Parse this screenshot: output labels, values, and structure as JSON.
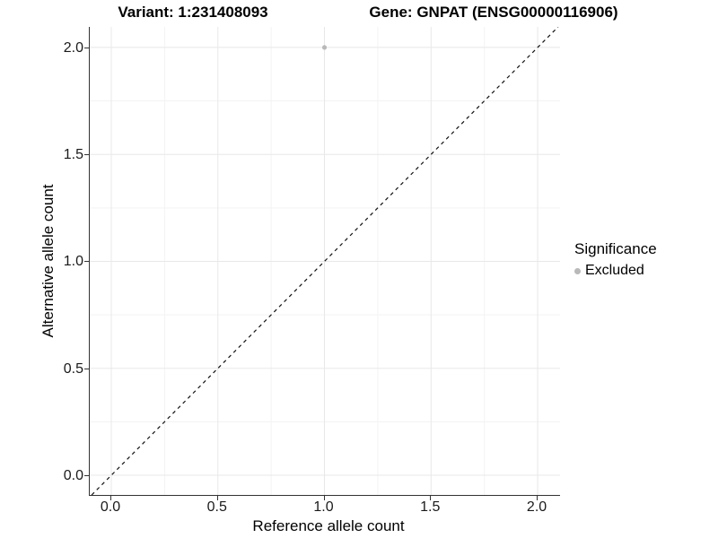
{
  "header": {
    "variant_title": "Variant: 1:231408093",
    "gene_title": "Gene: GNPAT (ENSG00000116906)"
  },
  "axes": {
    "x_label": "Reference allele count",
    "y_label": "Alternative allele count"
  },
  "legend": {
    "title": "Significance",
    "items": [
      {
        "label": "Excluded",
        "color": "#b9b9b9"
      }
    ]
  },
  "colors": {
    "background": "#ffffff",
    "grid_major": "#e8e8e8",
    "grid_minor": "#f3f3f3",
    "axis_line": "#333333",
    "dashed_line": "#111111",
    "point": "#b9b9b9",
    "text": "#000000"
  },
  "chart_data": {
    "type": "scatter",
    "title": "Variant: 1:231408093 | Gene: GNPAT (ENSG00000116906)",
    "xlabel": "Reference allele count",
    "ylabel": "Alternative allele count",
    "xlim": [
      -0.101,
      2.105
    ],
    "ylim": [
      -0.092,
      2.096
    ],
    "x_ticks": [
      0.0,
      0.5,
      1.0,
      1.5,
      2.0
    ],
    "y_ticks": [
      0.0,
      0.5,
      1.0,
      1.5,
      2.0
    ],
    "grid": true,
    "grid_minor": true,
    "legend_position": "right",
    "legend_title": "Significance",
    "series": [
      {
        "name": "Excluded",
        "color": "#b9b9b9",
        "points": [
          {
            "x": 1.0,
            "y": 2.0
          }
        ]
      }
    ],
    "reference_line": {
      "style": "dashed",
      "equation": "y = x"
    }
  }
}
